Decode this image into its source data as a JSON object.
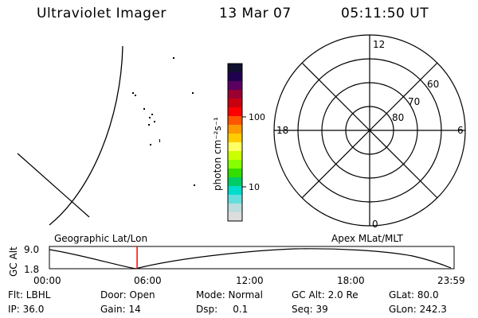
{
  "header": {
    "title": "Ultraviolet Imager",
    "date": "13 Mar 07",
    "time": "05:11:50 UT"
  },
  "colorbar": {
    "label": "photon cm⁻²s⁻¹",
    "ticks": [
      "100",
      "10"
    ],
    "colors": [
      "#101030",
      "#200050",
      "#5a0060",
      "#9a0030",
      "#c80010",
      "#ff0000",
      "#ff5500",
      "#ff9900",
      "#ffcc00",
      "#ffff66",
      "#ccff00",
      "#88ff00",
      "#33dd00",
      "#00cc66",
      "#00ddcc",
      "#66dddd",
      "#bbdddd",
      "#dddddd"
    ]
  },
  "polar_plot": {
    "mlt_labels": {
      "top": "12",
      "left": "18",
      "right": "6",
      "bottom": "0"
    },
    "lat_labels": [
      "60",
      "70",
      "80"
    ]
  },
  "timeline": {
    "left_label": "Geographic Lat/Lon",
    "right_label": "Apex MLat/MLT",
    "axis_title": "GC Alt",
    "y_ticks": [
      "9.0",
      "1.8"
    ],
    "x_ticks": [
      "00:00",
      "06:00",
      "12:00",
      "18:00",
      "23:59"
    ],
    "current_time_hours": 5.2,
    "marker_color": "#ff0000"
  },
  "info": {
    "flt": "Flt: LBHL",
    "door": "Door: Open",
    "mode": "Mode: Normal",
    "gc_alt": "GC Alt: 2.0 Re",
    "glat": "GLat: 80.0",
    "ip": "IP: 36.0",
    "gain": "Gain: 14",
    "dsp": "Dsp:     0.1",
    "seq": "Seq: 39",
    "glon": "GLon: 242.3"
  }
}
